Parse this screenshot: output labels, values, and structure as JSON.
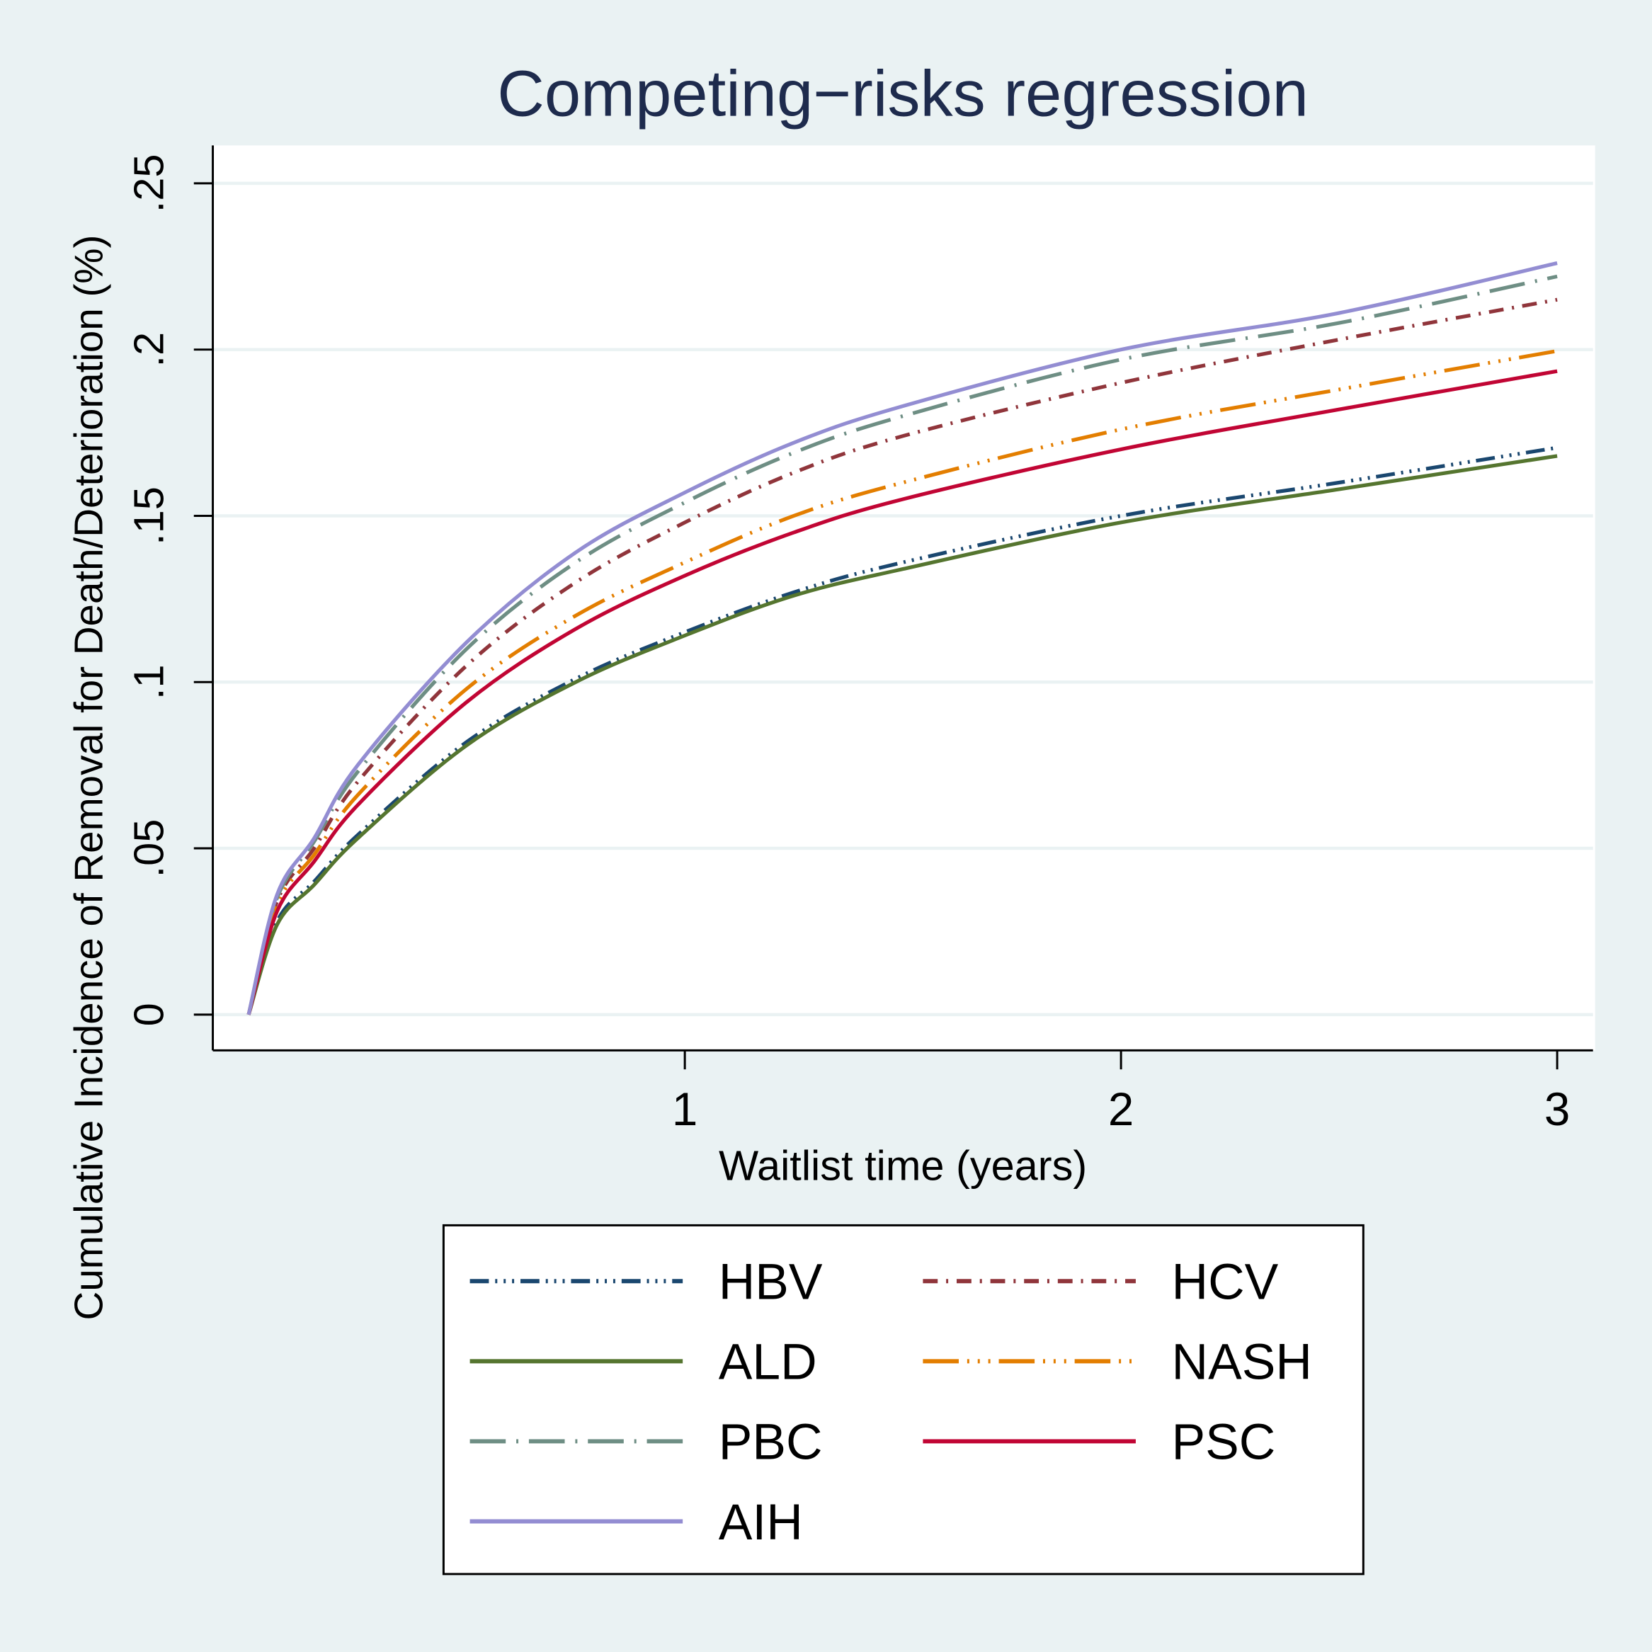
{
  "chart_data": {
    "type": "line",
    "title": "Competing−risks regression",
    "xlabel": "Waitlist time (years)",
    "ylabel": "Cumulative Incidence of Removal for Death/Deterioration (%)",
    "xlim": [
      0,
      3
    ],
    "ylim": [
      0,
      0.25
    ],
    "xticks": [
      1,
      2,
      3
    ],
    "xtick_labels": [
      "1",
      "2",
      "3"
    ],
    "yticks": [
      0,
      0.05,
      0.1,
      0.15,
      0.2,
      0.25
    ],
    "ytick_labels": [
      "0",
      ".05",
      ".1",
      ".15",
      ".2",
      ".25"
    ],
    "grid": "horizontal",
    "legend_position": "bottom",
    "background_color": "#eaf2f3",
    "x": [
      0,
      0.065,
      0.15,
      0.25,
      0.5,
      0.75,
      1,
      1.25,
      1.5,
      2,
      2.5,
      3
    ],
    "series": [
      {
        "name": "HBV",
        "color": "#1a476f",
        "style": "dash-dot-dot",
        "values": [
          0,
          0.028,
          0.04,
          0.054,
          0.082,
          0.101,
          0.115,
          0.127,
          0.136,
          0.15,
          0.16,
          0.1705
        ]
      },
      {
        "name": "HCV",
        "color": "#90353b",
        "style": "dash-dot-short",
        "values": [
          0,
          0.034,
          0.05,
          0.07,
          0.105,
          0.13,
          0.148,
          0.163,
          0.174,
          0.19,
          0.203,
          0.215
        ]
      },
      {
        "name": "ALD",
        "color": "#55752f",
        "style": "solid",
        "values": [
          0,
          0.027,
          0.039,
          0.053,
          0.081,
          0.1,
          0.114,
          0.126,
          0.134,
          0.148,
          0.158,
          0.168
        ]
      },
      {
        "name": "NASH",
        "color": "#e37e00",
        "style": "longdash-dot-dot",
        "values": [
          0,
          0.033,
          0.048,
          0.066,
          0.098,
          0.12,
          0.136,
          0.15,
          0.16,
          0.176,
          0.188,
          0.1996
        ]
      },
      {
        "name": "PBC",
        "color": "#6e8e84",
        "style": "longdash-dot",
        "values": [
          0,
          0.035,
          0.052,
          0.073,
          0.11,
          0.136,
          0.154,
          0.169,
          0.18,
          0.197,
          0.208,
          0.222
        ]
      },
      {
        "name": "PSC",
        "color": "#c10534",
        "style": "solid",
        "values": [
          0,
          0.031,
          0.046,
          0.063,
          0.094,
          0.116,
          0.132,
          0.145,
          0.155,
          0.17,
          0.182,
          0.1935
        ]
      },
      {
        "name": "AIH",
        "color": "#938dd2",
        "style": "solid",
        "values": [
          0,
          0.036,
          0.053,
          0.075,
          0.112,
          0.139,
          0.157,
          0.172,
          0.183,
          0.2,
          0.211,
          0.226
        ]
      }
    ]
  }
}
